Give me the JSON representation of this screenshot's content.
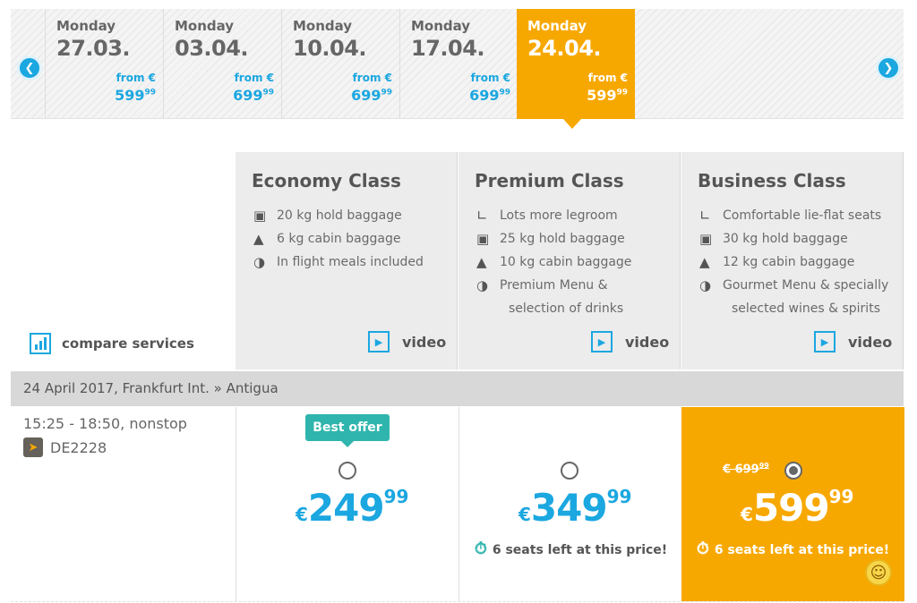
{
  "date_strip": {
    "prev_icon": "chevron-left-icon",
    "next_icon": "chevron-right-icon",
    "dates": [
      {
        "day": "Monday",
        "date": "27.03.",
        "from": "from €",
        "price": "599",
        "cents": "99",
        "active": false
      },
      {
        "day": "Monday",
        "date": "03.04.",
        "from": "from €",
        "price": "699",
        "cents": "99",
        "active": false
      },
      {
        "day": "Monday",
        "date": "10.04.",
        "from": "from €",
        "price": "699",
        "cents": "99",
        "active": false
      },
      {
        "day": "Monday",
        "date": "17.04.",
        "from": "from €",
        "price": "699",
        "cents": "99",
        "active": false
      },
      {
        "day": "Monday",
        "date": "24.04.",
        "from": "from €",
        "price": "599",
        "cents": "99",
        "active": true
      }
    ]
  },
  "classes": [
    {
      "title": "Economy Class",
      "features": [
        {
          "icon": "suitcase-icon",
          "text": "20 kg hold baggage"
        },
        {
          "icon": "bag-icon",
          "text": "6 kg cabin baggage"
        },
        {
          "icon": "meal-icon",
          "text": "In flight meals included"
        }
      ],
      "video_label": "video"
    },
    {
      "title": "Premium Class",
      "features": [
        {
          "icon": "seat-icon",
          "text": "Lots more legroom"
        },
        {
          "icon": "suitcase-icon",
          "text": "25 kg hold baggage"
        },
        {
          "icon": "bag-icon",
          "text": "10 kg cabin baggage"
        },
        {
          "icon": "meal-icon",
          "text": "Premium Menu &",
          "text2": "selection of drinks"
        }
      ],
      "video_label": "video"
    },
    {
      "title": "Business Class",
      "features": [
        {
          "icon": "seat-icon",
          "text": "Comfortable lie-flat seats"
        },
        {
          "icon": "suitcase-icon",
          "text": "30 kg hold baggage"
        },
        {
          "icon": "bag-icon",
          "text": "12 kg cabin baggage"
        },
        {
          "icon": "meal-icon",
          "text": "Gourmet Menu & specially",
          "text2": "selected wines & spirits"
        }
      ],
      "video_label": "video"
    }
  ],
  "compare": {
    "label": "compare services",
    "icon": "bar-chart-icon"
  },
  "route": {
    "text": "24 April 2017, Frankfurt Int. » Antigua"
  },
  "flight": {
    "time": "15:25 - 18:50, nonstop",
    "code": "DE2228",
    "airline_icon": "airline-logo-icon"
  },
  "fares": [
    {
      "badge": "Best offer",
      "currency": "€",
      "price": "249",
      "cents": "99",
      "seats": "",
      "selected": false
    },
    {
      "badge": "",
      "currency": "€",
      "price": "349",
      "cents": "99",
      "seats": "6 seats left at this price!",
      "selected": false
    },
    {
      "badge": "",
      "old_price": "€ 699",
      "old_cents": "99",
      "currency": "€",
      "price": "599",
      "cents": "99",
      "seats": "6 seats left at this price!",
      "selected": true
    }
  ],
  "colors": {
    "accent": "#1ba7e0",
    "selected": "#f7a800",
    "badge": "#2fb5ad"
  }
}
